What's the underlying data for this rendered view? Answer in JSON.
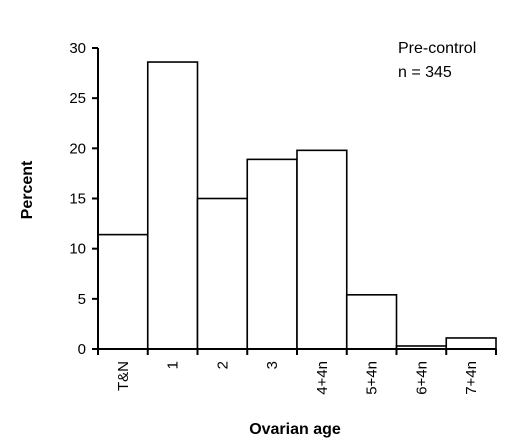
{
  "chart_data": {
    "type": "bar",
    "title": "",
    "xlabel": "Ovarian age",
    "ylabel": "Percent",
    "ylim": [
      0,
      30
    ],
    "yticks": [
      0,
      5,
      10,
      15,
      20,
      25,
      30
    ],
    "categories": [
      "T&N",
      "1",
      "2",
      "3",
      "4+4n",
      "5+4n",
      "6+4n",
      "7+4n"
    ],
    "values": [
      11.4,
      28.6,
      15.0,
      18.9,
      19.8,
      5.4,
      0.3,
      1.1
    ],
    "grid": false,
    "legend": null,
    "annotation": {
      "line1": "Pre-control",
      "line2": "n = 345",
      "placement": "top-right"
    }
  }
}
